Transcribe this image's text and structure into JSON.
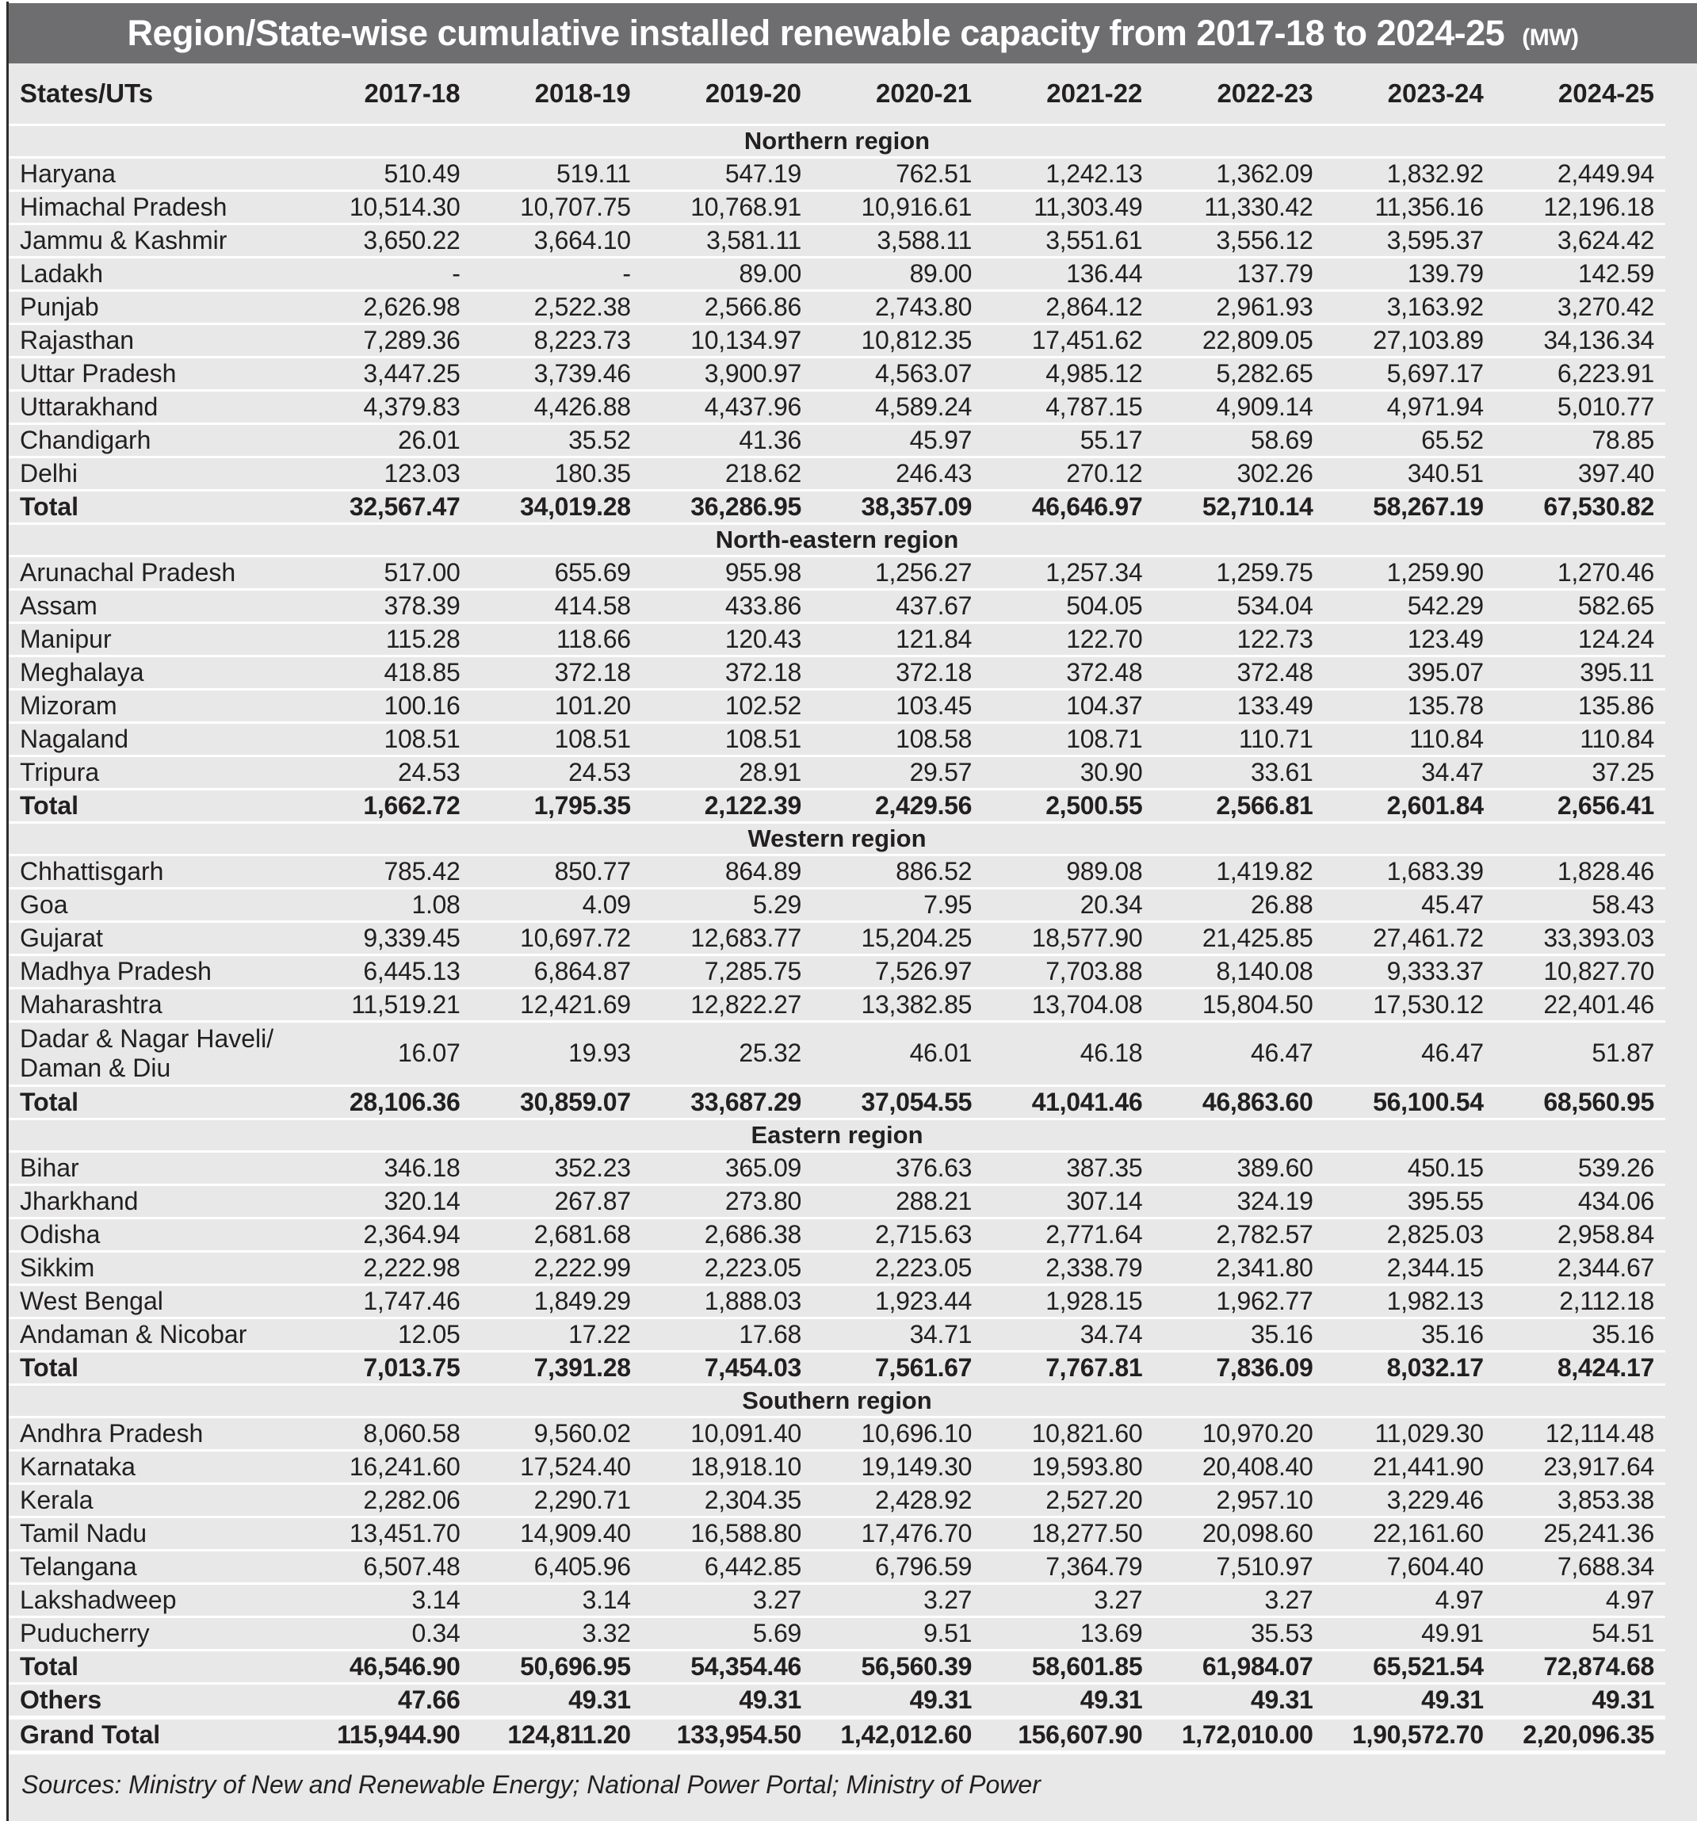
{
  "title": {
    "main": "Region/State-wise cumulative installed renewable capacity from 2017-18 to 2024-25",
    "unit": "(MW)"
  },
  "table": {
    "state_column_header": "States/UTs",
    "year_columns": [
      "2017-18",
      "2018-19",
      "2019-20",
      "2020-21",
      "2021-22",
      "2022-23",
      "2023-24",
      "2024-25"
    ],
    "sections": [
      {
        "region": "Northern region",
        "rows": [
          {
            "state": "Haryana",
            "values": [
              "510.49",
              "519.11",
              "547.19",
              "762.51",
              "1,242.13",
              "1,362.09",
              "1,832.92",
              "2,449.94"
            ]
          },
          {
            "state": "Himachal Pradesh",
            "values": [
              "10,514.30",
              "10,707.75",
              "10,768.91",
              "10,916.61",
              "11,303.49",
              "11,330.42",
              "11,356.16",
              "12,196.18"
            ]
          },
          {
            "state": "Jammu & Kashmir",
            "values": [
              "3,650.22",
              "3,664.10",
              "3,581.11",
              "3,588.11",
              "3,551.61",
              "3,556.12",
              "3,595.37",
              "3,624.42"
            ]
          },
          {
            "state": "Ladakh",
            "values": [
              "-",
              "-",
              "89.00",
              "89.00",
              "136.44",
              "137.79",
              "139.79",
              "142.59"
            ]
          },
          {
            "state": "Punjab",
            "values": [
              "2,626.98",
              "2,522.38",
              "2,566.86",
              "2,743.80",
              "2,864.12",
              "2,961.93",
              "3,163.92",
              "3,270.42"
            ]
          },
          {
            "state": "Rajasthan",
            "values": [
              "7,289.36",
              "8,223.73",
              "10,134.97",
              "10,812.35",
              "17,451.62",
              "22,809.05",
              "27,103.89",
              "34,136.34"
            ]
          },
          {
            "state": "Uttar Pradesh",
            "values": [
              "3,447.25",
              "3,739.46",
              "3,900.97",
              "4,563.07",
              "4,985.12",
              "5,282.65",
              "5,697.17",
              "6,223.91"
            ]
          },
          {
            "state": "Uttarakhand",
            "values": [
              "4,379.83",
              "4,426.88",
              "4,437.96",
              "4,589.24",
              "4,787.15",
              "4,909.14",
              "4,971.94",
              "5,010.77"
            ]
          },
          {
            "state": "Chandigarh",
            "values": [
              "26.01",
              "35.52",
              "41.36",
              "45.97",
              "55.17",
              "58.69",
              "65.52",
              "78.85"
            ]
          },
          {
            "state": "Delhi",
            "values": [
              "123.03",
              "180.35",
              "218.62",
              "246.43",
              "270.12",
              "302.26",
              "340.51",
              "397.40"
            ]
          },
          {
            "state": "Total",
            "bold": true,
            "values": [
              "32,567.47",
              "34,019.28",
              "36,286.95",
              "38,357.09",
              "46,646.97",
              "52,710.14",
              "58,267.19",
              "67,530.82"
            ]
          }
        ]
      },
      {
        "region": "North-eastern region",
        "rows": [
          {
            "state": "Arunachal Pradesh",
            "values": [
              "517.00",
              "655.69",
              "955.98",
              "1,256.27",
              "1,257.34",
              "1,259.75",
              "1,259.90",
              "1,270.46"
            ]
          },
          {
            "state": "Assam",
            "values": [
              "378.39",
              "414.58",
              "433.86",
              "437.67",
              "504.05",
              "534.04",
              "542.29",
              "582.65"
            ]
          },
          {
            "state": "Manipur",
            "values": [
              "115.28",
              "118.66",
              "120.43",
              "121.84",
              "122.70",
              "122.73",
              "123.49",
              "124.24"
            ]
          },
          {
            "state": "Meghalaya",
            "values": [
              "418.85",
              "372.18",
              "372.18",
              "372.18",
              "372.48",
              "372.48",
              "395.07",
              "395.11"
            ]
          },
          {
            "state": "Mizoram",
            "values": [
              "100.16",
              "101.20",
              "102.52",
              "103.45",
              "104.37",
              "133.49",
              "135.78",
              "135.86"
            ]
          },
          {
            "state": "Nagaland",
            "values": [
              "108.51",
              "108.51",
              "108.51",
              "108.58",
              "108.71",
              "110.71",
              "110.84",
              "110.84"
            ]
          },
          {
            "state": "Tripura",
            "values": [
              "24.53",
              "24.53",
              "28.91",
              "29.57",
              "30.90",
              "33.61",
              "34.47",
              "37.25"
            ]
          },
          {
            "state": "Total",
            "bold": true,
            "values": [
              "1,662.72",
              "1,795.35",
              "2,122.39",
              "2,429.56",
              "2,500.55",
              "2,566.81",
              "2,601.84",
              "2,656.41"
            ]
          }
        ]
      },
      {
        "region": "Western region",
        "rows": [
          {
            "state": "Chhattisgarh",
            "values": [
              "785.42",
              "850.77",
              "864.89",
              "886.52",
              "989.08",
              "1,419.82",
              "1,683.39",
              "1,828.46"
            ]
          },
          {
            "state": "Goa",
            "values": [
              "1.08",
              "4.09",
              "5.29",
              "7.95",
              "20.34",
              "26.88",
              "45.47",
              "58.43"
            ]
          },
          {
            "state": "Gujarat",
            "values": [
              "9,339.45",
              "10,697.72",
              "12,683.77",
              "15,204.25",
              "18,577.90",
              "21,425.85",
              "27,461.72",
              "33,393.03"
            ]
          },
          {
            "state": "Madhya Pradesh",
            "values": [
              "6,445.13",
              "6,864.87",
              "7,285.75",
              "7,526.97",
              "7,703.88",
              "8,140.08",
              "9,333.37",
              "10,827.70"
            ]
          },
          {
            "state": "Maharashtra",
            "values": [
              "11,519.21",
              "12,421.69",
              "12,822.27",
              "13,382.85",
              "13,704.08",
              "15,804.50",
              "17,530.12",
              "22,401.46"
            ]
          },
          {
            "state": "Dadar & Nagar Haveli/\nDaman & Diu",
            "tall": true,
            "values": [
              "16.07",
              "19.93",
              "25.32",
              "46.01",
              "46.18",
              "46.47",
              "46.47",
              "51.87"
            ]
          },
          {
            "state": "Total",
            "bold": true,
            "values": [
              "28,106.36",
              "30,859.07",
              "33,687.29",
              "37,054.55",
              "41,041.46",
              "46,863.60",
              "56,100.54",
              "68,560.95"
            ]
          }
        ]
      },
      {
        "region": "Eastern region",
        "rows": [
          {
            "state": "Bihar",
            "values": [
              "346.18",
              "352.23",
              "365.09",
              "376.63",
              "387.35",
              "389.60",
              "450.15",
              "539.26"
            ]
          },
          {
            "state": "Jharkhand",
            "values": [
              "320.14",
              "267.87",
              "273.80",
              "288.21",
              "307.14",
              "324.19",
              "395.55",
              "434.06"
            ]
          },
          {
            "state": "Odisha",
            "values": [
              "2,364.94",
              "2,681.68",
              "2,686.38",
              "2,715.63",
              "2,771.64",
              "2,782.57",
              "2,825.03",
              "2,958.84"
            ]
          },
          {
            "state": "Sikkim",
            "values": [
              "2,222.98",
              "2,222.99",
              "2,223.05",
              "2,223.05",
              "2,338.79",
              "2,341.80",
              "2,344.15",
              "2,344.67"
            ]
          },
          {
            "state": "West Bengal",
            "values": [
              "1,747.46",
              "1,849.29",
              "1,888.03",
              "1,923.44",
              "1,928.15",
              "1,962.77",
              "1,982.13",
              "2,112.18"
            ]
          },
          {
            "state": "Andaman & Nicobar",
            "values": [
              "12.05",
              "17.22",
              "17.68",
              "34.71",
              "34.74",
              "35.16",
              "35.16",
              "35.16"
            ]
          },
          {
            "state": "Total",
            "bold": true,
            "values": [
              "7,013.75",
              "7,391.28",
              "7,454.03",
              "7,561.67",
              "7,767.81",
              "7,836.09",
              "8,032.17",
              "8,424.17"
            ]
          }
        ]
      },
      {
        "region": "Southern region",
        "rows": [
          {
            "state": "Andhra Pradesh",
            "values": [
              "8,060.58",
              "9,560.02",
              "10,091.40",
              "10,696.10",
              "10,821.60",
              "10,970.20",
              "11,029.30",
              "12,114.48"
            ]
          },
          {
            "state": "Karnataka",
            "values": [
              "16,241.60",
              "17,524.40",
              "18,918.10",
              "19,149.30",
              "19,593.80",
              "20,408.40",
              "21,441.90",
              "23,917.64"
            ]
          },
          {
            "state": "Kerala",
            "values": [
              "2,282.06",
              "2,290.71",
              "2,304.35",
              "2,428.92",
              "2,527.20",
              "2,957.10",
              "3,229.46",
              "3,853.38"
            ]
          },
          {
            "state": "Tamil Nadu",
            "values": [
              "13,451.70",
              "14,909.40",
              "16,588.80",
              "17,476.70",
              "18,277.50",
              "20,098.60",
              "22,161.60",
              "25,241.36"
            ]
          },
          {
            "state": "Telangana",
            "values": [
              "6,507.48",
              "6,405.96",
              "6,442.85",
              "6,796.59",
              "7,364.79",
              "7,510.97",
              "7,604.40",
              "7,688.34"
            ]
          },
          {
            "state": "Lakshadweep",
            "values": [
              "3.14",
              "3.14",
              "3.27",
              "3.27",
              "3.27",
              "3.27",
              "4.97",
              "4.97"
            ]
          },
          {
            "state": "Puducherry",
            "values": [
              "0.34",
              "3.32",
              "5.69",
              "9.51",
              "13.69",
              "35.53",
              "49.91",
              "54.51"
            ]
          },
          {
            "state": "Total",
            "bold": true,
            "values": [
              "46,546.90",
              "50,696.95",
              "54,354.46",
              "56,560.39",
              "58,601.85",
              "61,984.07",
              "65,521.54",
              "72,874.68"
            ]
          }
        ]
      }
    ],
    "footer_rows": [
      {
        "state": "Others",
        "bold": true,
        "values": [
          "47.66",
          "49.31",
          "49.31",
          "49.31",
          "49.31",
          "49.31",
          "49.31",
          "49.31"
        ]
      },
      {
        "state": "Grand Total",
        "bold": true,
        "grand": true,
        "values": [
          "115,944.90",
          "124,811.20",
          "133,954.50",
          "1,42,012.60",
          "156,607.90",
          "1,72,010.00",
          "1,90,572.70",
          "2,20,096.35"
        ]
      }
    ]
  },
  "sources": "Sources: Ministry of New and Renewable Energy; National Power Portal; Ministry of Power",
  "colors": {
    "title-bar": "#6e6e70",
    "table-bg": "#e8e8e8",
    "sep": "#ffffff",
    "ink": "#221f20",
    "title-ink": "#ffffff"
  }
}
